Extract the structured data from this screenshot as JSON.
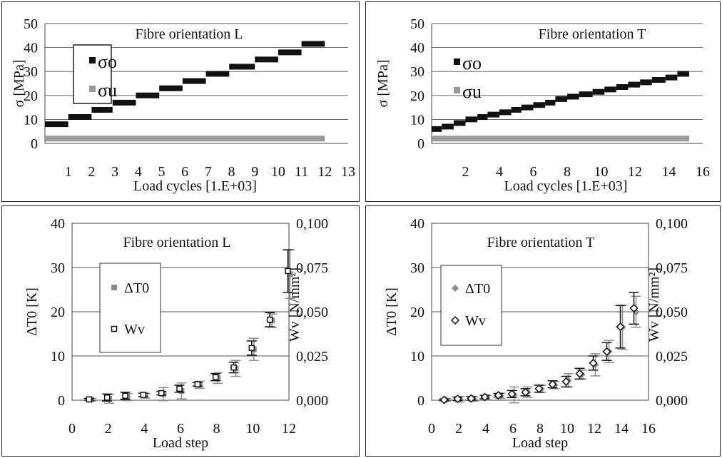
{
  "chart_data": [
    {
      "type": "scatter",
      "title": "Fibre orientation L",
      "xlabel": "Load cycles [1.E+03]",
      "ylabel": "σ [MPa]",
      "xlim": [
        0,
        13
      ],
      "ylim": [
        0,
        50
      ],
      "xticks": [
        "1",
        "2",
        "3",
        "4",
        "5",
        "6",
        "7",
        "8",
        "9",
        "10",
        "11",
        "12",
        "13"
      ],
      "yticks": [
        "0",
        "10",
        "20",
        "30",
        "40",
        "50"
      ],
      "grid": true,
      "legend_position": "top-left",
      "series": [
        {
          "name": "σo",
          "color": "#111111",
          "steps": [
            [
              0.0,
              1.0,
              8
            ],
            [
              1.0,
              2.0,
              11
            ],
            [
              2.0,
              2.9,
              14
            ],
            [
              2.9,
              3.9,
              17
            ],
            [
              3.9,
              4.9,
              20
            ],
            [
              4.9,
              5.9,
              23
            ],
            [
              5.9,
              6.9,
              26
            ],
            [
              6.9,
              7.9,
              29
            ],
            [
              7.9,
              9.0,
              32
            ],
            [
              9.0,
              10.0,
              35
            ],
            [
              10.0,
              11.0,
              38
            ],
            [
              11.0,
              12.0,
              41.5
            ]
          ]
        },
        {
          "name": "σu",
          "color": "#9a9a9a",
          "steps": [
            [
              0.0,
              12.0,
              2
            ]
          ]
        }
      ]
    },
    {
      "type": "scatter",
      "title": "Fibre orientation T",
      "xlabel": "Load cycles [1.E+03]",
      "ylabel": "σ [MPa]",
      "xlim": [
        0,
        16
      ],
      "ylim": [
        0,
        50
      ],
      "xticks": [
        "2",
        "4",
        "6",
        "8",
        "10",
        "12",
        "14",
        "16"
      ],
      "yticks": [
        "0",
        "10",
        "20",
        "30",
        "40",
        "50"
      ],
      "grid": true,
      "legend_position": "top-left",
      "series": [
        {
          "name": "σo",
          "color": "#111111",
          "steps": [
            [
              0.0,
              0.6,
              6
            ],
            [
              0.6,
              1.3,
              7
            ],
            [
              1.3,
              2.0,
              8.5
            ],
            [
              2.0,
              2.7,
              10
            ],
            [
              2.7,
              3.3,
              11
            ],
            [
              3.3,
              4.0,
              12
            ],
            [
              4.0,
              4.7,
              13
            ],
            [
              4.7,
              5.3,
              14
            ],
            [
              5.3,
              6.0,
              15
            ],
            [
              6.0,
              6.7,
              16
            ],
            [
              6.7,
              7.3,
              17
            ],
            [
              7.3,
              8.0,
              18.5
            ],
            [
              8.0,
              8.7,
              19.5
            ],
            [
              8.7,
              9.5,
              20.5
            ],
            [
              9.5,
              10.2,
              21.5
            ],
            [
              10.2,
              10.9,
              22.5
            ],
            [
              10.9,
              11.6,
              23.5
            ],
            [
              11.6,
              12.3,
              24.5
            ],
            [
              12.3,
              13.0,
              25.5
            ],
            [
              13.0,
              13.8,
              26.5
            ],
            [
              13.8,
              14.5,
              27.5
            ],
            [
              14.5,
              15.2,
              29
            ]
          ]
        },
        {
          "name": "σu",
          "color": "#9a9a9a",
          "steps": [
            [
              0.0,
              15.2,
              2
            ]
          ]
        }
      ]
    },
    {
      "type": "scatter",
      "title": "Fibre orientation L",
      "xlabel": "Load step",
      "ylabel": "ΔT0 [K]",
      "y2label": "Wv [N/mm²]",
      "xlim": [
        0,
        12
      ],
      "ylim": [
        0,
        40
      ],
      "y2lim": [
        0,
        0.1
      ],
      "xticks": [
        "0",
        "2",
        "4",
        "6",
        "8",
        "10",
        "12"
      ],
      "yticks": [
        "0",
        "10",
        "20",
        "30",
        "40"
      ],
      "y2ticks": [
        "0,000",
        "0,025",
        "0,050",
        "0,075",
        "0,100"
      ],
      "grid": true,
      "legend_position": "top-left",
      "series": [
        {
          "name": "ΔT0",
          "marker": "square",
          "color": "#8c8c8c",
          "x": [
            1,
            2,
            3,
            4,
            5,
            6,
            7,
            8,
            9,
            10,
            11,
            12
          ],
          "y": [
            0.1,
            0.3,
            0.7,
            1.0,
            1.4,
            2.1,
            3.5,
            5.0,
            7.2,
            11.5,
            18.0,
            28.5
          ],
          "err": [
            0.3,
            1.0,
            0.8,
            0.5,
            1.5,
            1.8,
            0.8,
            1.2,
            1.8,
            2.5,
            1.5,
            5.5
          ]
        },
        {
          "name": "Wv",
          "marker": "open-square",
          "color": "#111111",
          "x": [
            1,
            2,
            3,
            4,
            5,
            6,
            7,
            8,
            9,
            10,
            11,
            12
          ],
          "y": [
            0.0005,
            0.0015,
            0.0025,
            0.003,
            0.004,
            0.0065,
            0.009,
            0.013,
            0.0185,
            0.0295,
            0.0455,
            0.073
          ],
          "err": [
            0.0005,
            0.002,
            0.002,
            0.001,
            0.001,
            0.002,
            0.001,
            0.002,
            0.003,
            0.004,
            0.004,
            0.012
          ]
        }
      ]
    },
    {
      "type": "scatter",
      "title": "Fibre orientation T",
      "xlabel": "Load step",
      "ylabel": "ΔT0 [K]",
      "y2label": "Wv [N/mm²]",
      "xlim": [
        0,
        16
      ],
      "ylim": [
        0,
        40
      ],
      "y2lim": [
        0,
        0.1
      ],
      "xticks": [
        "0",
        "2",
        "4",
        "6",
        "8",
        "10",
        "12",
        "14",
        "16"
      ],
      "yticks": [
        "0",
        "10",
        "20",
        "30",
        "40"
      ],
      "y2ticks": [
        "0,000",
        "0,025",
        "0,050",
        "0,075",
        "0,100"
      ],
      "grid": true,
      "legend_position": "top-left",
      "series": [
        {
          "name": "ΔT0",
          "marker": "diamond",
          "color": "#8c8c8c",
          "x": [
            1,
            2,
            3,
            4,
            5,
            6,
            7,
            8,
            9,
            10,
            11,
            12,
            13,
            14,
            15
          ],
          "y": [
            0.1,
            0.2,
            0.3,
            0.6,
            1.0,
            1.2,
            1.8,
            2.6,
            3.4,
            4.5,
            5.8,
            8.0,
            11.0,
            16.5,
            20.0
          ],
          "err": [
            0.3,
            0.6,
            0.5,
            0.5,
            0.6,
            1.8,
            1.2,
            0.8,
            0.8,
            1.5,
            1.0,
            2.5,
            2.5,
            5.0,
            3.5
          ]
        },
        {
          "name": "Wv",
          "marker": "open-diamond",
          "color": "#111111",
          "x": [
            1,
            2,
            3,
            4,
            5,
            6,
            7,
            8,
            9,
            10,
            11,
            12,
            13,
            14,
            15
          ],
          "y": [
            0.0002,
            0.0008,
            0.001,
            0.0018,
            0.0028,
            0.0035,
            0.0045,
            0.0065,
            0.009,
            0.0105,
            0.015,
            0.021,
            0.0275,
            0.0415,
            0.052
          ],
          "err": [
            0.0005,
            0.001,
            0.001,
            0.001,
            0.001,
            0.002,
            0.002,
            0.002,
            0.002,
            0.003,
            0.003,
            0.004,
            0.005,
            0.012,
            0.009
          ]
        }
      ]
    }
  ]
}
